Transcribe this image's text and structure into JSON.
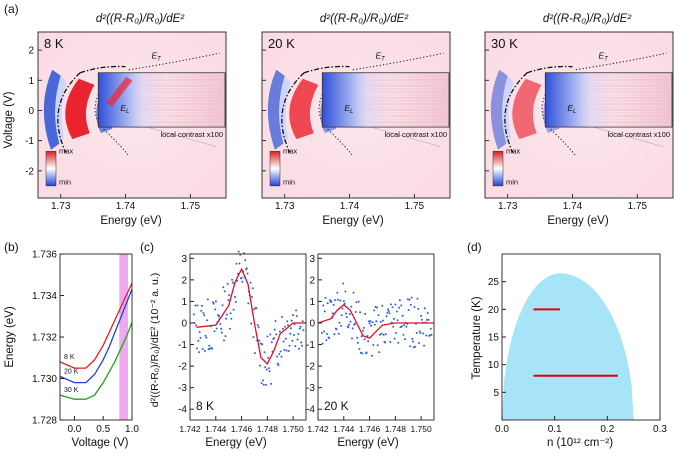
{
  "panel_labels": [
    "(a)",
    "(b)",
    "(c)",
    "(d)"
  ],
  "panel_a": {
    "formula": "d²((R-R₀)/R₀)/dE²",
    "temperatures": [
      "8 K",
      "20 K",
      "30 K"
    ],
    "xlabel": "Energy (eV)",
    "ylabel": "Voltage (V)",
    "xticks": [
      "1.73",
      "1.74",
      "1.75"
    ],
    "yticks": [
      "2",
      "1",
      "0",
      "-1",
      "-2"
    ],
    "trion_label": "E_T",
    "exciton_label": "E_L",
    "inset_caption": "local contrast x100",
    "colorbar": {
      "max": "max",
      "min": "min",
      "colors": [
        "#d42020",
        "#ffffff",
        "#2040d0"
      ]
    }
  },
  "chart_data": [
    {
      "type": "line",
      "panel": "b",
      "xlabel": "Voltage (V)",
      "ylabel": "Energy (eV)",
      "xlim": [
        -0.25,
        1.0
      ],
      "ylim": [
        1.728,
        1.736
      ],
      "xticks": [
        "0.0",
        "0.5",
        "1.0"
      ],
      "yticks": [
        "1.736",
        "1.734",
        "1.732",
        "1.730",
        "1.728"
      ],
      "highlight_band": {
        "from": 0.78,
        "to": 0.93,
        "color": "#f0a8f0"
      },
      "series": [
        {
          "name": "8 K",
          "color": "#e02020",
          "x": [
            -0.25,
            0.0,
            0.2,
            0.35,
            0.5,
            0.6,
            0.7,
            0.8,
            0.9,
            1.0
          ],
          "y": [
            1.7308,
            1.7305,
            1.7305,
            1.7309,
            1.7316,
            1.7322,
            1.7328,
            1.7334,
            1.734,
            1.7346
          ]
        },
        {
          "name": "20 K",
          "color": "#2040e0",
          "x": [
            -0.25,
            0.0,
            0.2,
            0.35,
            0.5,
            0.6,
            0.7,
            0.8,
            0.9,
            1.0
          ],
          "y": [
            1.7301,
            1.7298,
            1.7298,
            1.7302,
            1.7309,
            1.7315,
            1.7322,
            1.7329,
            1.7336,
            1.7343
          ]
        },
        {
          "name": "30 K",
          "color": "#20a020",
          "x": [
            -0.25,
            0.0,
            0.2,
            0.35,
            0.5,
            0.6,
            0.7,
            0.8,
            0.9,
            1.0
          ],
          "y": [
            1.7292,
            1.729,
            1.729,
            1.7292,
            1.7298,
            1.7303,
            1.7308,
            1.7314,
            1.732,
            1.7327
          ]
        }
      ]
    },
    {
      "type": "scatter",
      "panel": "c",
      "ylabel": "d²((R-R₀)/R₀)/dE² (10⁻² a. u.)",
      "xlabel": "Energy (eV)",
      "xlim": [
        1.742,
        1.751
      ],
      "ylim": [
        -4.5,
        3.2
      ],
      "xticks": [
        "1.742",
        "1.744",
        "1.746",
        "1.748",
        "1.750"
      ],
      "yticks": [
        "3",
        "2",
        "1",
        "0",
        "-1",
        "-2",
        "-3",
        "-4"
      ],
      "subplots": [
        {
          "label": "8 K",
          "fit_x": [
            1.7425,
            1.744,
            1.745,
            1.7455,
            1.746,
            1.7465,
            1.747,
            1.7475,
            1.748,
            1.7485,
            1.749,
            1.75,
            1.751
          ],
          "fit_y": [
            -0.2,
            -0.1,
            0.8,
            1.9,
            2.5,
            1.8,
            0.0,
            -1.6,
            -1.9,
            -1.3,
            -0.5,
            0.0,
            0.0
          ]
        },
        {
          "label": "20 K",
          "fit_x": [
            1.742,
            1.743,
            1.7435,
            1.744,
            1.7445,
            1.745,
            1.7455,
            1.746,
            1.7465,
            1.747,
            1.748,
            1.749,
            1.751
          ],
          "fit_y": [
            0.0,
            0.2,
            0.6,
            0.85,
            0.6,
            0.0,
            -0.6,
            -0.7,
            -0.4,
            -0.1,
            0.0,
            0.0,
            0.0
          ]
        }
      ]
    },
    {
      "type": "area",
      "panel": "d",
      "xlabel": "n (10¹² cm⁻²)",
      "ylabel": "Temperature (K)",
      "xlim": [
        0.0,
        0.3
      ],
      "ylim": [
        0,
        30
      ],
      "xticks": [
        "0.0",
        "0.1",
        "0.2",
        "0.3"
      ],
      "yticks": [
        "5",
        "10",
        "15",
        "20",
        "25"
      ],
      "dome": {
        "color": "#a8e4f8",
        "n_range": [
          0.0,
          0.25
        ],
        "peak_T": 26.5,
        "peak_n": 0.11
      },
      "segments": [
        {
          "T": 20,
          "n_from": 0.06,
          "n_to": 0.11,
          "color": "#e00000"
        },
        {
          "T": 8,
          "n_from": 0.06,
          "n_to": 0.22,
          "color": "#e00000"
        }
      ]
    }
  ]
}
